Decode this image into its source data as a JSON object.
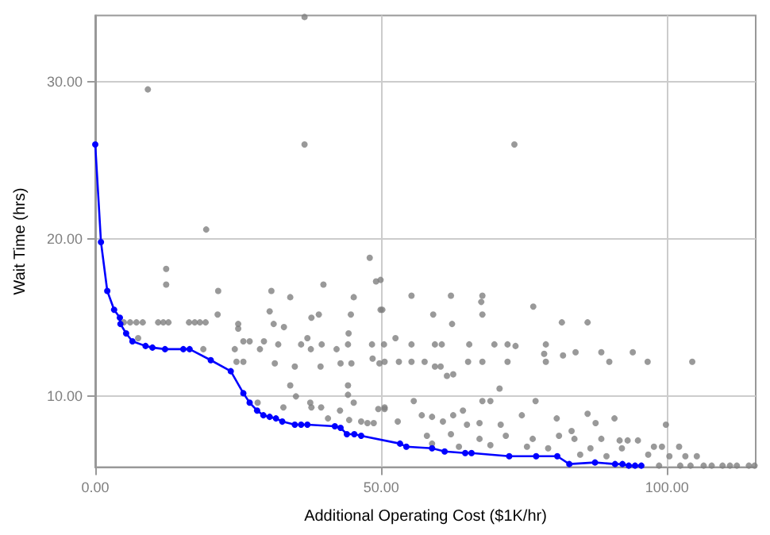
{
  "chart_data": {
    "type": "scatter",
    "xlabel": "Additional Operating Cost ($1K/hr)",
    "ylabel": "Wait Time (hrs)",
    "xlim": [
      0,
      115.5
    ],
    "ylim": [
      5.5,
      34.2
    ],
    "xticks": [
      {
        "value": 0,
        "label": "0.00"
      },
      {
        "value": 50,
        "label": "50.00"
      },
      {
        "value": 100,
        "label": "100.00"
      }
    ],
    "yticks": [
      {
        "value": 10,
        "label": "10.00"
      },
      {
        "value": 20,
        "label": "20.00"
      },
      {
        "value": 30,
        "label": "30.00"
      }
    ],
    "grid": true,
    "marker": "circle",
    "series": [
      {
        "color": "#808080",
        "x": [
          9.2,
          36.6,
          36.6,
          73.3,
          19.4,
          48.0,
          12.4,
          12.4,
          21.5,
          30.8,
          34.1,
          39.9,
          45.2,
          49.1,
          50.2,
          44.7,
          39.1,
          37.8,
          30.5,
          31.2,
          33.0,
          25.0,
          25.0,
          21.4,
          19.3,
          16.4,
          17.4,
          18.3,
          11.0,
          11.9,
          12.8,
          5.0,
          6.1,
          7.2,
          8.3,
          7.5,
          18.9,
          24.4,
          25.9,
          27.0,
          29.5,
          28.8,
          32.0,
          36.0,
          37.1,
          39.6,
          37.7,
          42.2,
          44.2,
          44.3,
          48.4,
          31.4,
          34.9,
          39.4,
          42.9,
          44.8,
          48.5,
          49.7,
          24.7,
          25.9,
          34.1,
          35.1,
          44.2,
          44.2,
          45.2,
          37.6,
          37.8,
          39.5,
          32.9,
          28.4,
          42.8,
          49.5,
          50.6,
          40.7,
          44.4,
          46.5,
          47.6,
          48.7,
          49.9,
          49.9,
          55.3,
          62.2,
          67.7,
          67.5,
          67.7,
          59.1,
          62.4,
          76.6,
          81.6,
          86.1,
          50.5,
          52.5,
          55.3,
          59.4,
          60.6,
          65.4,
          69.8,
          72.1,
          73.5,
          78.8,
          78.5,
          84.0,
          88.5,
          94.0,
          50.6,
          53.1,
          55.3,
          57.6,
          65.2,
          67.7,
          72.1,
          78.8,
          81.8,
          89.9,
          96.6,
          104.4,
          59.4,
          60.4,
          61.5,
          62.6,
          70.7,
          55.7,
          64.3,
          67.7,
          69.1,
          77.0,
          99.8,
          50.6,
          52.9,
          57.1,
          58.9,
          60.8,
          62.6,
          65.0,
          67.2,
          70.9,
          74.6,
          80.7,
          83.3,
          86.1,
          87.5,
          90.8,
          58.0,
          62.2,
          67.2,
          71.8,
          76.5,
          81.1,
          83.8,
          88.5,
          91.7,
          93.1,
          94.9,
          58.9,
          63.6,
          69.1,
          75.5,
          79.2,
          86.6,
          92.1,
          97.7,
          99.1,
          102.1,
          84.8,
          89.4,
          96.7,
          100.4,
          103.2,
          105.2,
          98.6,
          102.3,
          104.1,
          106.4,
          107.8,
          109.7,
          111.0,
          112.2,
          114.3,
          115.3
        ],
        "values": [
          29.5,
          34.1,
          26.0,
          26.0,
          20.6,
          18.8,
          18.1,
          17.1,
          16.7,
          16.7,
          16.3,
          17.1,
          16.3,
          17.3,
          15.5,
          15.2,
          15.2,
          15.0,
          15.4,
          14.6,
          14.4,
          14.6,
          14.3,
          15.2,
          14.7,
          14.7,
          14.7,
          14.7,
          14.7,
          14.7,
          14.7,
          14.7,
          14.7,
          14.7,
          14.7,
          13.7,
          13.0,
          13.0,
          13.5,
          13.5,
          13.5,
          13.0,
          13.3,
          13.3,
          13.7,
          13.3,
          13.0,
          13.0,
          13.3,
          14.0,
          13.3,
          12.1,
          11.9,
          11.9,
          12.1,
          12.1,
          12.4,
          12.1,
          12.2,
          12.2,
          10.7,
          10.0,
          10.7,
          10.1,
          9.6,
          9.6,
          9.3,
          9.3,
          9.3,
          9.6,
          9.1,
          9.2,
          9.2,
          8.6,
          8.5,
          8.4,
          8.3,
          8.3,
          17.4,
          15.5,
          16.4,
          16.4,
          16.4,
          16.0,
          15.2,
          15.2,
          14.6,
          15.7,
          14.7,
          14.7,
          13.3,
          13.7,
          13.3,
          13.3,
          13.3,
          13.3,
          13.3,
          13.3,
          13.2,
          13.3,
          12.7,
          12.8,
          12.8,
          12.8,
          12.2,
          12.2,
          12.2,
          12.2,
          12.2,
          12.2,
          12.2,
          12.2,
          12.6,
          12.2,
          12.2,
          12.2,
          11.9,
          11.9,
          11.3,
          11.4,
          10.5,
          9.7,
          9.1,
          9.7,
          9.7,
          9.7,
          8.2,
          9.3,
          8.4,
          8.8,
          8.7,
          8.4,
          8.8,
          8.2,
          8.3,
          8.2,
          8.8,
          8.6,
          7.8,
          8.9,
          8.3,
          8.6,
          7.5,
          7.6,
          7.3,
          7.5,
          7.3,
          7.5,
          7.3,
          7.3,
          7.2,
          7.2,
          7.2,
          7.0,
          6.8,
          6.9,
          6.8,
          6.7,
          6.7,
          6.7,
          6.8,
          6.8,
          6.8,
          6.3,
          6.2,
          6.3,
          6.2,
          6.2,
          6.2,
          5.6,
          5.6,
          5.6,
          5.6,
          5.6,
          5.6,
          5.6,
          5.6,
          5.6,
          5.6
        ]
      },
      {
        "type": "line",
        "color": "#0000ff",
        "x": [
          0,
          1.0,
          2.1,
          3.3,
          4.3,
          4.4,
          5.4,
          6.5,
          8.8,
          10.0,
          12.2,
          15.4,
          16.5,
          20.2,
          23.7,
          25.9,
          27.0,
          28.3,
          29.4,
          30.5,
          31.6,
          32.7,
          34.9,
          36.0,
          37.1,
          41.9,
          42.9,
          44.0,
          45.3,
          46.5,
          53.3,
          54.4,
          58.9,
          61.1,
          64.7,
          65.8,
          72.4,
          77.1,
          80.8,
          82.9,
          87.4,
          90.9,
          92.2,
          93.3,
          94.4,
          95.5
        ],
        "values": [
          26.0,
          19.8,
          16.7,
          15.5,
          15.0,
          14.6,
          14.0,
          13.5,
          13.2,
          13.1,
          13.0,
          13.0,
          13.0,
          12.3,
          11.6,
          10.2,
          9.6,
          9.1,
          8.8,
          8.7,
          8.6,
          8.4,
          8.2,
          8.2,
          8.2,
          8.1,
          8.0,
          7.6,
          7.6,
          7.5,
          7.0,
          6.8,
          6.7,
          6.5,
          6.4,
          6.4,
          6.2,
          6.2,
          6.2,
          5.7,
          5.8,
          5.7,
          5.7,
          5.6,
          5.6,
          5.6
        ]
      }
    ]
  }
}
